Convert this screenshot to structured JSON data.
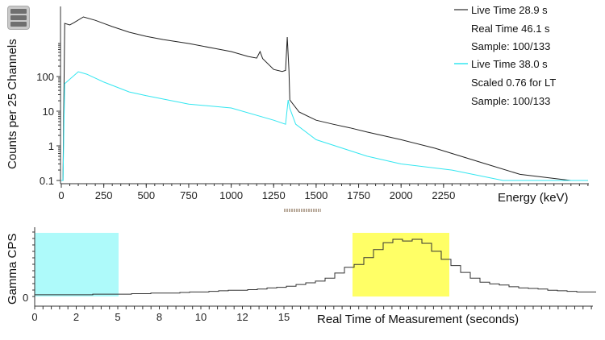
{
  "menu": {
    "icon": "hamburger-menu-icon"
  },
  "chart_data": [
    {
      "type": "line",
      "xlabel": "Energy (keV)",
      "ylabel": "Counts per 25 Channels",
      "yscale": "log",
      "ylim": [
        0.1,
        10000
      ],
      "xlim": [
        0,
        3100
      ],
      "x_ticks": [
        "0",
        "250",
        "500",
        "750",
        "1000",
        "1250",
        "1500",
        "1750",
        "2000",
        "2250"
      ],
      "y_ticks": [
        "0.1",
        "1",
        "10",
        "100"
      ],
      "legend_placement": "top-right",
      "series": [
        {
          "legend": [
            "Live Time 28.9 s",
            "Real Time 46.1 s",
            "Sample: 100/133"
          ],
          "color": "#222222",
          "points": [
            [
              0,
              0.1
            ],
            [
              10,
              0.1
            ],
            [
              20,
              3430
            ],
            [
              50,
              3080
            ],
            [
              75,
              3600
            ],
            [
              130,
              5250
            ],
            [
              200,
              4200
            ],
            [
              300,
              2760
            ],
            [
              400,
              1900
            ],
            [
              500,
              1450
            ],
            [
              600,
              1170
            ],
            [
              750,
              900
            ],
            [
              900,
              650
            ],
            [
              1000,
              525
            ],
            [
              1100,
              380
            ],
            [
              1150,
              340
            ],
            [
              1170,
              525
            ],
            [
              1185,
              330
            ],
            [
              1250,
              160
            ],
            [
              1300,
              140
            ],
            [
              1320,
              150
            ],
            [
              1330,
              1380
            ],
            [
              1340,
              150
            ],
            [
              1345,
              21
            ],
            [
              1400,
              9.5
            ],
            [
              1500,
              5.5
            ],
            [
              1600,
              4.2
            ],
            [
              1700,
              3.3
            ],
            [
              1800,
              2.5
            ],
            [
              2000,
              1.5
            ],
            [
              2200,
              0.85
            ],
            [
              2500,
              0.3
            ],
            [
              2700,
              0.15
            ],
            [
              3000,
              0.1
            ],
            [
              3100,
              0.1
            ]
          ]
        },
        {
          "legend": [
            "Live Time 38.0 s",
            "Scaled 0.76 for LT",
            "Sample: 100/133"
          ],
          "color": "#33e6f0",
          "points": [
            [
              0,
              0.1
            ],
            [
              10,
              0.1
            ],
            [
              20,
              62
            ],
            [
              100,
              138
            ],
            [
              150,
              117
            ],
            [
              250,
              69
            ],
            [
              400,
              36
            ],
            [
              500,
              28
            ],
            [
              750,
              16
            ],
            [
              1000,
              12.4
            ],
            [
              1250,
              5.5
            ],
            [
              1320,
              4.2
            ],
            [
              1335,
              21
            ],
            [
              1345,
              12
            ],
            [
              1380,
              4.2
            ],
            [
              1500,
              1.5
            ],
            [
              1800,
              0.5
            ],
            [
              2000,
              0.3
            ],
            [
              2300,
              0.2
            ],
            [
              2600,
              0.1
            ],
            [
              3100,
              0.1
            ]
          ]
        }
      ]
    },
    {
      "type": "line",
      "xlabel": "Real Time of Measurement (seconds)",
      "ylabel": "Gamma CPS",
      "x_ticks": [
        "0",
        "2",
        "5",
        "8",
        "10",
        "12",
        "15"
      ],
      "y_ticks": [
        "0"
      ],
      "step": true,
      "color": "#333333",
      "values": [
        3,
        3,
        3,
        3,
        3,
        3,
        4,
        4,
        4,
        4,
        5,
        5,
        6,
        6,
        6,
        7,
        8,
        8,
        9,
        10,
        11,
        11,
        12,
        13,
        15,
        16,
        18,
        21,
        24,
        27,
        32,
        41,
        51,
        56,
        68,
        82,
        94,
        100,
        97,
        100,
        93,
        79,
        65,
        54,
        42,
        32,
        25,
        22,
        20,
        17,
        15,
        14,
        13,
        11,
        10,
        9,
        8,
        8
      ],
      "highlights": [
        {
          "name": "background",
          "color": "#aefafa"
        },
        {
          "name": "foreground",
          "color": "#ffff66"
        }
      ]
    }
  ]
}
